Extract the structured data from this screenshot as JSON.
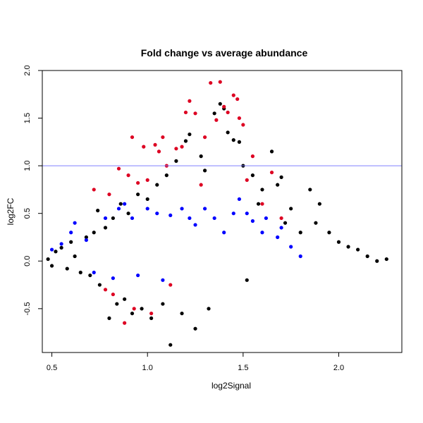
{
  "chart_data": {
    "type": "scatter",
    "title": "Fold change vs average abundance",
    "xlabel": "log2Signal",
    "ylabel": "log2FC",
    "xlim": [
      0.45,
      2.33
    ],
    "ylim": [
      -0.96,
      2.0
    ],
    "x_ticks": [
      0.5,
      1.0,
      1.5,
      2.0
    ],
    "x_tick_labels": [
      "0.5",
      "1.0",
      "1.5",
      "2.0"
    ],
    "y_ticks": [
      -0.5,
      0.0,
      0.5,
      1.0,
      1.5,
      2.0
    ],
    "y_tick_labels": [
      "-0.5",
      "0.0",
      "0.5",
      "1.0",
      "1.5",
      "2.0"
    ],
    "reference_line": {
      "y": 1.0,
      "color": "#8080ff"
    },
    "grid": false,
    "colors": {
      "background": "#000000",
      "significant": "#0000ff",
      "highlight": "#dd0022"
    },
    "series": [
      {
        "color": "#000000",
        "points": [
          [
            0.48,
            0.02
          ],
          [
            0.5,
            -0.05
          ],
          [
            0.52,
            0.1
          ],
          [
            0.55,
            0.14
          ],
          [
            0.58,
            -0.08
          ],
          [
            0.6,
            0.2
          ],
          [
            0.62,
            0.05
          ],
          [
            0.65,
            -0.12
          ],
          [
            0.68,
            0.25
          ],
          [
            0.7,
            -0.15
          ],
          [
            0.72,
            0.3
          ],
          [
            0.74,
            0.53
          ],
          [
            0.75,
            -0.25
          ],
          [
            0.78,
            0.35
          ],
          [
            0.8,
            -0.6
          ],
          [
            0.82,
            0.45
          ],
          [
            0.84,
            -0.45
          ],
          [
            0.86,
            0.6
          ],
          [
            0.88,
            -0.4
          ],
          [
            0.9,
            0.5
          ],
          [
            0.92,
            -0.55
          ],
          [
            0.95,
            0.7
          ],
          [
            0.97,
            -0.5
          ],
          [
            1.0,
            0.65
          ],
          [
            1.02,
            -0.6
          ],
          [
            1.05,
            0.8
          ],
          [
            1.08,
            -0.45
          ],
          [
            1.1,
            0.9
          ],
          [
            1.12,
            -0.88
          ],
          [
            1.15,
            1.05
          ],
          [
            1.18,
            -0.55
          ],
          [
            1.2,
            1.26
          ],
          [
            1.22,
            1.33
          ],
          [
            1.25,
            -0.71
          ],
          [
            1.28,
            1.1
          ],
          [
            1.3,
            0.95
          ],
          [
            1.32,
            -0.5
          ],
          [
            1.35,
            1.55
          ],
          [
            1.38,
            1.65
          ],
          [
            1.4,
            1.6
          ],
          [
            1.42,
            1.35
          ],
          [
            1.45,
            1.27
          ],
          [
            1.48,
            1.25
          ],
          [
            1.5,
            1.0
          ],
          [
            1.52,
            -0.2
          ],
          [
            1.55,
            0.9
          ],
          [
            1.58,
            0.6
          ],
          [
            1.6,
            0.75
          ],
          [
            1.65,
            1.15
          ],
          [
            1.68,
            0.8
          ],
          [
            1.7,
            0.88
          ],
          [
            1.72,
            0.4
          ],
          [
            1.75,
            0.55
          ],
          [
            1.8,
            0.3
          ],
          [
            1.85,
            0.75
          ],
          [
            1.88,
            0.4
          ],
          [
            1.9,
            0.6
          ],
          [
            1.95,
            0.3
          ],
          [
            2.0,
            0.2
          ],
          [
            2.05,
            0.15
          ],
          [
            2.1,
            0.12
          ],
          [
            2.15,
            0.05
          ],
          [
            2.2,
            0.0
          ],
          [
            2.25,
            0.02
          ]
        ]
      },
      {
        "color": "#0000ff",
        "points": [
          [
            0.5,
            0.12
          ],
          [
            0.55,
            0.18
          ],
          [
            0.6,
            0.3
          ],
          [
            0.62,
            0.4
          ],
          [
            0.68,
            0.22
          ],
          [
            0.72,
            -0.12
          ],
          [
            0.78,
            0.45
          ],
          [
            0.82,
            -0.18
          ],
          [
            0.85,
            0.55
          ],
          [
            0.88,
            0.6
          ],
          [
            0.92,
            0.45
          ],
          [
            0.95,
            -0.15
          ],
          [
            1.0,
            0.55
          ],
          [
            1.05,
            0.5
          ],
          [
            1.08,
            -0.2
          ],
          [
            1.12,
            0.48
          ],
          [
            1.18,
            0.55
          ],
          [
            1.22,
            0.45
          ],
          [
            1.25,
            0.38
          ],
          [
            1.3,
            0.55
          ],
          [
            1.35,
            0.45
          ],
          [
            1.4,
            0.3
          ],
          [
            1.45,
            0.5
          ],
          [
            1.48,
            0.65
          ],
          [
            1.52,
            0.5
          ],
          [
            1.55,
            0.42
          ],
          [
            1.6,
            0.3
          ],
          [
            1.62,
            0.45
          ],
          [
            1.68,
            0.25
          ],
          [
            1.7,
            0.35
          ],
          [
            1.75,
            0.15
          ],
          [
            1.8,
            0.05
          ]
        ]
      },
      {
        "color": "#dd0022",
        "points": [
          [
            0.72,
            0.75
          ],
          [
            0.78,
            -0.3
          ],
          [
            0.8,
            0.7
          ],
          [
            0.82,
            -0.35
          ],
          [
            0.85,
            0.97
          ],
          [
            0.88,
            -0.65
          ],
          [
            0.9,
            0.9
          ],
          [
            0.92,
            1.3
          ],
          [
            0.93,
            -0.5
          ],
          [
            0.95,
            0.82
          ],
          [
            0.98,
            1.2
          ],
          [
            1.0,
            0.85
          ],
          [
            1.02,
            -0.55
          ],
          [
            1.04,
            1.22
          ],
          [
            1.06,
            1.15
          ],
          [
            1.08,
            1.3
          ],
          [
            1.1,
            1.0
          ],
          [
            1.12,
            -0.25
          ],
          [
            1.15,
            1.18
          ],
          [
            1.18,
            1.2
          ],
          [
            1.2,
            1.56
          ],
          [
            1.22,
            1.68
          ],
          [
            1.25,
            1.55
          ],
          [
            1.28,
            0.8
          ],
          [
            1.3,
            1.3
          ],
          [
            1.33,
            1.87
          ],
          [
            1.36,
            1.48
          ],
          [
            1.38,
            1.88
          ],
          [
            1.4,
            1.62
          ],
          [
            1.42,
            1.56
          ],
          [
            1.45,
            1.74
          ],
          [
            1.47,
            1.7
          ],
          [
            1.48,
            1.5
          ],
          [
            1.5,
            1.43
          ],
          [
            1.52,
            0.85
          ],
          [
            1.55,
            1.1
          ],
          [
            1.6,
            0.6
          ],
          [
            1.65,
            0.93
          ],
          [
            1.7,
            0.45
          ]
        ]
      }
    ]
  }
}
